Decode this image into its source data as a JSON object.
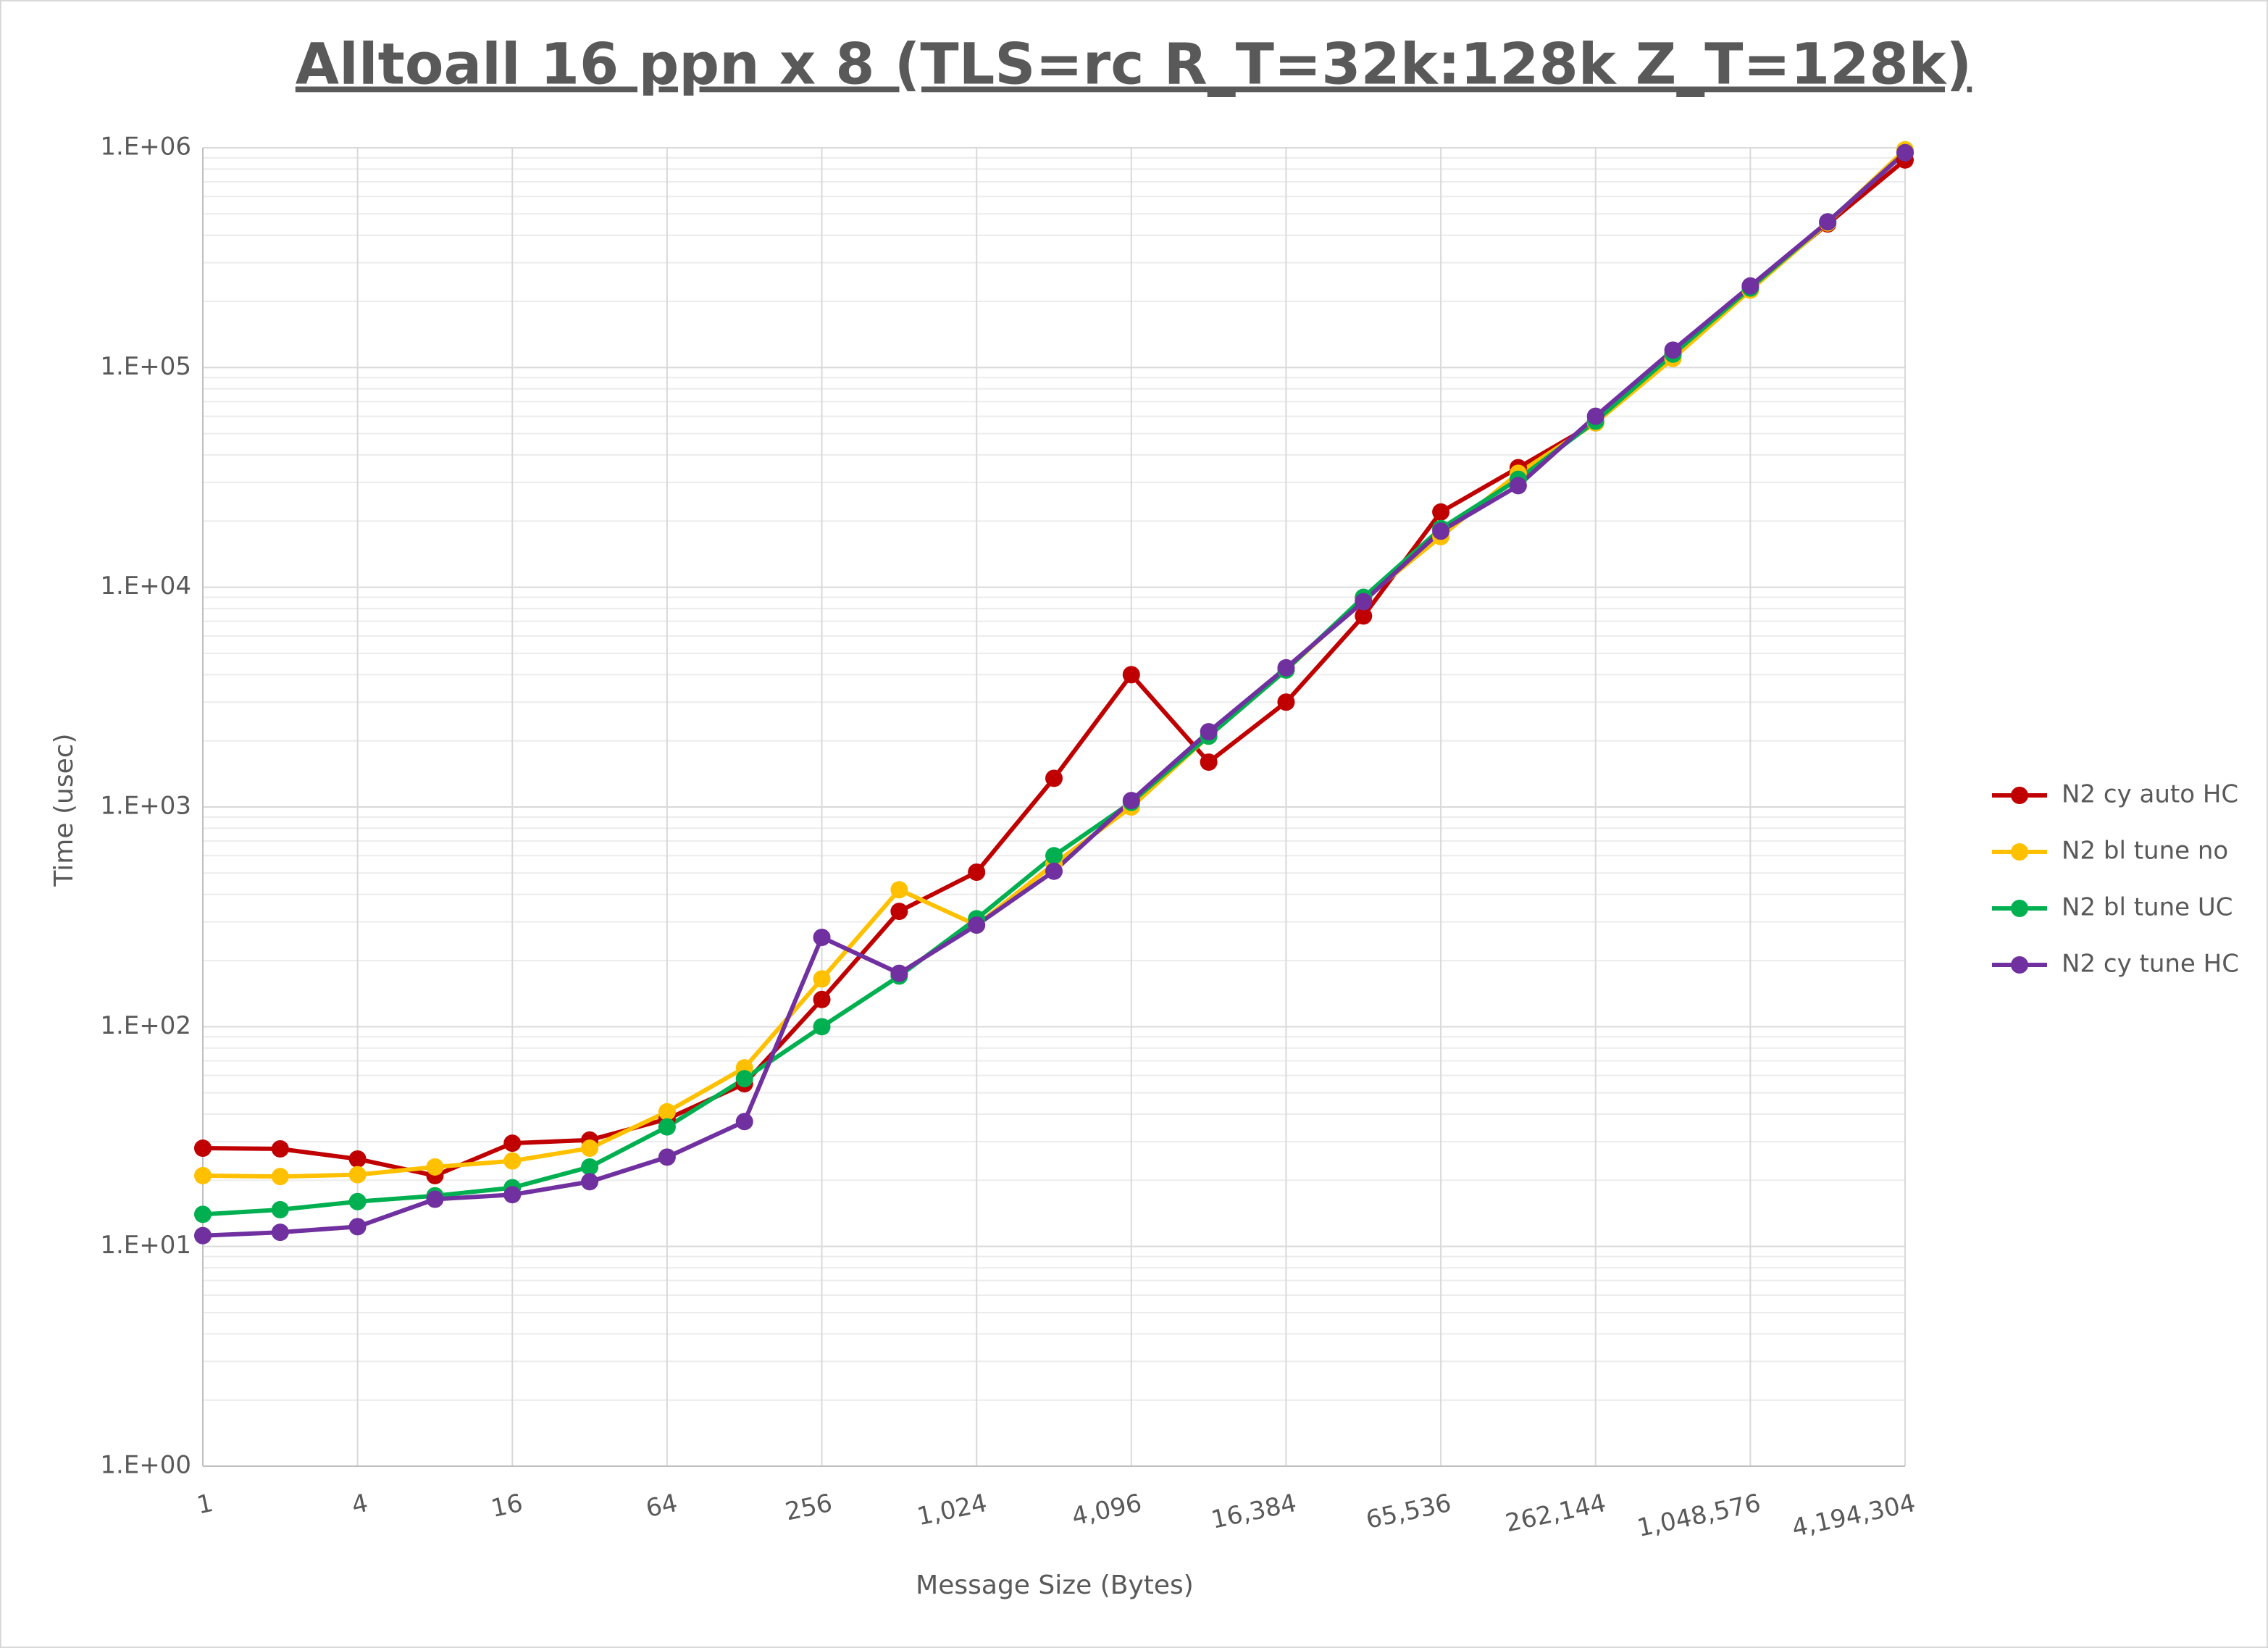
{
  "chart_data": {
    "type": "line",
    "title": "Alltoall 16 ppn x 8 (TLS=rc R_T=32k:128k Z_T=128k)",
    "x_label": "Message Size (Bytes)",
    "y_label": "Time (usec)",
    "x": [
      1,
      2,
      4,
      8,
      16,
      32,
      64,
      128,
      256,
      512,
      1024,
      2048,
      4096,
      8192,
      16384,
      32768,
      65536,
      131072,
      262144,
      524288,
      1048576,
      2097152,
      4194304
    ],
    "xlim": [
      1,
      4194304
    ],
    "xticks": [
      1,
      4,
      16,
      64,
      256,
      {
        "value": 1024,
        "label": "1,024"
      },
      {
        "value": 4096,
        "label": "4,096"
      },
      {
        "value": 16384,
        "label": "16,384"
      },
      {
        "value": 65536,
        "label": "65,536"
      },
      {
        "value": 262144,
        "label": "262,144"
      },
      {
        "value": 1048576,
        "label": "1,048,576"
      },
      {
        "value": 4194304,
        "label": "4,194,304"
      }
    ],
    "x_log": true,
    "x_log_base": 2,
    "ylim": [
      1,
      1000000
    ],
    "yticks": [
      {
        "value": 1,
        "label": "1.E+00"
      },
      {
        "value": 10,
        "label": "1.E+01"
      },
      {
        "value": 100,
        "label": "1.E+02"
      },
      {
        "value": 1000,
        "label": "1.E+03"
      },
      {
        "value": 10000,
        "label": "1.E+04"
      },
      {
        "value": 100000,
        "label": "1.E+05"
      },
      {
        "value": 1000000,
        "label": "1.E+06"
      }
    ],
    "y_log": true,
    "grid": true,
    "minor_grid": true,
    "legend_position": "right",
    "series": [
      {
        "name": "N2 cy auto HC",
        "color": "#c00000",
        "values": [
          28,
          27.8,
          25,
          21,
          29.5,
          30.5,
          38,
          55,
          133,
          335,
          505,
          1350,
          4000,
          1600,
          3000,
          7400,
          22000,
          35000,
          56000,
          115000,
          230000,
          450000,
          880000
        ]
      },
      {
        "name": "N2 bl tune no",
        "color": "#ffc000",
        "values": [
          21,
          20.8,
          21.2,
          23,
          24.5,
          28,
          41,
          65,
          165,
          420,
          290,
          550,
          1000,
          2100,
          4200,
          8800,
          17000,
          33000,
          56000,
          110000,
          225000,
          455000,
          980000
        ]
      },
      {
        "name": "N2 bl tune UC",
        "color": "#00b050",
        "values": [
          14,
          14.7,
          16,
          17,
          18.5,
          23,
          35,
          58,
          100,
          170,
          310,
          600,
          1050,
          2100,
          4200,
          9000,
          18500,
          31000,
          57000,
          115000,
          230000,
          460000,
          950000
        ]
      },
      {
        "name": "N2 cy tune HC",
        "color": "#7030a0",
        "values": [
          11.2,
          11.6,
          12.3,
          16.4,
          17.2,
          19.7,
          25.5,
          37,
          255,
          175,
          290,
          510,
          1070,
          2200,
          4300,
          8600,
          18000,
          29000,
          60000,
          120000,
          235000,
          460000,
          950000
        ]
      }
    ]
  }
}
